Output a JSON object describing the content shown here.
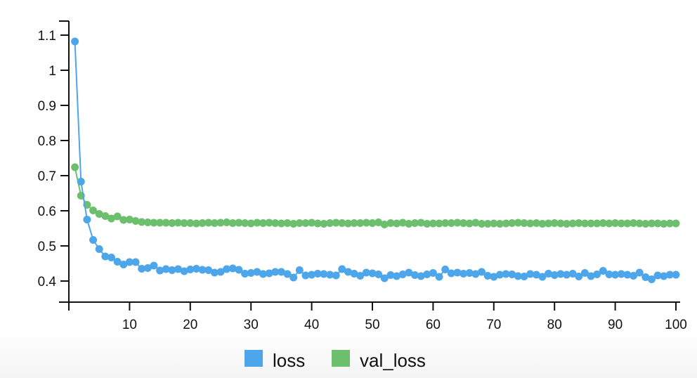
{
  "chart_data": {
    "type": "line",
    "x": [
      1,
      2,
      3,
      4,
      5,
      6,
      7,
      8,
      9,
      10,
      11,
      12,
      13,
      14,
      15,
      16,
      17,
      18,
      19,
      20,
      21,
      22,
      23,
      24,
      25,
      26,
      27,
      28,
      29,
      30,
      31,
      32,
      33,
      34,
      35,
      36,
      37,
      38,
      39,
      40,
      41,
      42,
      43,
      44,
      45,
      46,
      47,
      48,
      49,
      50,
      51,
      52,
      53,
      54,
      55,
      56,
      57,
      58,
      59,
      60,
      61,
      62,
      63,
      64,
      65,
      66,
      67,
      68,
      69,
      70,
      71,
      72,
      73,
      74,
      75,
      76,
      77,
      78,
      79,
      80,
      81,
      82,
      83,
      84,
      85,
      86,
      87,
      88,
      89,
      90,
      91,
      92,
      93,
      94,
      95,
      96,
      97,
      98,
      99,
      100
    ],
    "series": [
      {
        "name": "loss",
        "color": "#4da6ea",
        "values": [
          1.082,
          0.683,
          0.575,
          0.517,
          0.491,
          0.47,
          0.467,
          0.455,
          0.447,
          0.454,
          0.454,
          0.435,
          0.437,
          0.444,
          0.43,
          0.434,
          0.431,
          0.434,
          0.428,
          0.433,
          0.435,
          0.432,
          0.431,
          0.424,
          0.426,
          0.434,
          0.436,
          0.432,
          0.421,
          0.423,
          0.426,
          0.42,
          0.422,
          0.426,
          0.426,
          0.42,
          0.41,
          0.431,
          0.416,
          0.418,
          0.421,
          0.42,
          0.418,
          0.416,
          0.434,
          0.426,
          0.421,
          0.415,
          0.424,
          0.422,
          0.419,
          0.408,
          0.417,
          0.414,
          0.419,
          0.424,
          0.417,
          0.414,
          0.419,
          0.423,
          0.412,
          0.433,
          0.422,
          0.424,
          0.421,
          0.423,
          0.42,
          0.426,
          0.415,
          0.412,
          0.418,
          0.42,
          0.419,
          0.414,
          0.413,
          0.42,
          0.418,
          0.412,
          0.421,
          0.417,
          0.42,
          0.418,
          0.421,
          0.413,
          0.423,
          0.414,
          0.419,
          0.429,
          0.419,
          0.418,
          0.42,
          0.418,
          0.415,
          0.424,
          0.411,
          0.405,
          0.416,
          0.414,
          0.418,
          0.418
        ]
      },
      {
        "name": "val_loss",
        "color": "#6cbf6c",
        "values": [
          0.724,
          0.643,
          0.617,
          0.601,
          0.591,
          0.585,
          0.578,
          0.584,
          0.574,
          0.575,
          0.571,
          0.568,
          0.567,
          0.566,
          0.566,
          0.566,
          0.565,
          0.566,
          0.565,
          0.565,
          0.564,
          0.565,
          0.566,
          0.565,
          0.566,
          0.567,
          0.565,
          0.566,
          0.565,
          0.564,
          0.566,
          0.565,
          0.566,
          0.565,
          0.564,
          0.565,
          0.563,
          0.565,
          0.565,
          0.566,
          0.564,
          0.563,
          0.565,
          0.566,
          0.565,
          0.564,
          0.565,
          0.565,
          0.566,
          0.565,
          0.567,
          0.561,
          0.565,
          0.564,
          0.566,
          0.563,
          0.565,
          0.566,
          0.563,
          0.564,
          0.564,
          0.565,
          0.565,
          0.566,
          0.565,
          0.564,
          0.566,
          0.563,
          0.563,
          0.564,
          0.563,
          0.564,
          0.565,
          0.566,
          0.565,
          0.564,
          0.565,
          0.563,
          0.564,
          0.565,
          0.564,
          0.563,
          0.564,
          0.565,
          0.564,
          0.564,
          0.564,
          0.565,
          0.564,
          0.565,
          0.564,
          0.564,
          0.565,
          0.564,
          0.563,
          0.564,
          0.564,
          0.563,
          0.564,
          0.564
        ]
      }
    ],
    "x_ticks": [
      10,
      20,
      30,
      40,
      50,
      60,
      70,
      80,
      90,
      100
    ],
    "y_ticks": [
      0.4,
      0.5,
      0.6,
      0.7,
      0.8,
      0.9,
      1,
      1.1
    ],
    "x_tick_labels": [
      "10",
      "20",
      "30",
      "40",
      "50",
      "60",
      "70",
      "80",
      "90",
      "100"
    ],
    "y_tick_labels": [
      "0.4",
      "0.5",
      "0.6",
      "0.7",
      "0.8",
      "0.9",
      "1",
      "1.1"
    ],
    "xlim": [
      0,
      100
    ],
    "ylim": [
      0.34,
      1.14
    ],
    "xlabel": "",
    "ylabel": "",
    "title": "",
    "grid": false,
    "legend_placement": "bottom-center"
  }
}
